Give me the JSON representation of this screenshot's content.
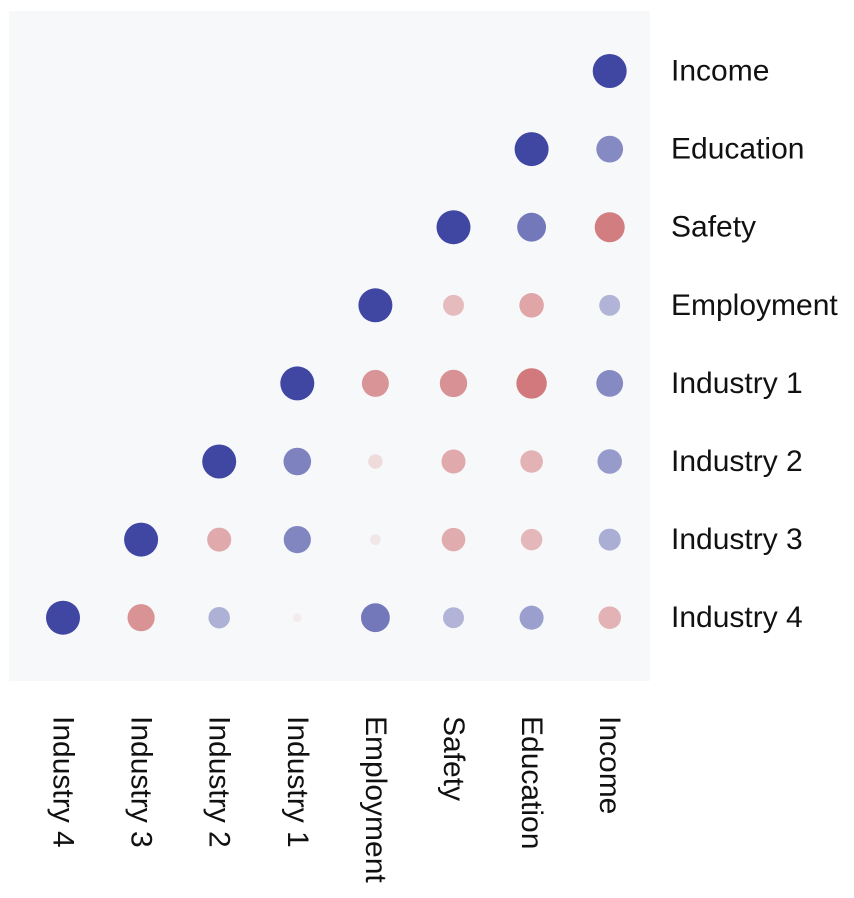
{
  "chart_data": {
    "type": "heatmap",
    "variables": [
      "Industry 4",
      "Industry 3",
      "Industry 2",
      "Industry 1",
      "Employment",
      "Safety",
      "Education",
      "Income"
    ],
    "x_ticks": [
      "Industry 4",
      "Industry 3",
      "Industry 2",
      "Industry 1",
      "Employment",
      "Safety",
      "Education",
      "Income"
    ],
    "y_ticks": [
      "Income",
      "Education",
      "Safety",
      "Employment",
      "Industry 1",
      "Industry 2",
      "Industry 3",
      "Industry 4"
    ],
    "value_range": [
      -1,
      1
    ],
    "colors": {
      "positive": "#3f47a3",
      "negative": "#c85a5e",
      "zero": "#f7f7f7",
      "panel_background": "#f7f8fa"
    },
    "cells": [
      {
        "row": "Income",
        "col": "Income",
        "value": 1.0
      },
      {
        "row": "Education",
        "col": "Education",
        "value": 1.0
      },
      {
        "row": "Education",
        "col": "Income",
        "value": 0.62
      },
      {
        "row": "Safety",
        "col": "Safety",
        "value": 1.0
      },
      {
        "row": "Safety",
        "col": "Education",
        "value": 0.72
      },
      {
        "row": "Safety",
        "col": "Income",
        "value": -0.78
      },
      {
        "row": "Employment",
        "col": "Employment",
        "value": 1.0
      },
      {
        "row": "Employment",
        "col": "Safety",
        "value": -0.38
      },
      {
        "row": "Employment",
        "col": "Education",
        "value": -0.52
      },
      {
        "row": "Employment",
        "col": "Income",
        "value": 0.38
      },
      {
        "row": "Industry 1",
        "col": "Industry 1",
        "value": 1.0
      },
      {
        "row": "Industry 1",
        "col": "Employment",
        "value": -0.63
      },
      {
        "row": "Industry 1",
        "col": "Safety",
        "value": -0.65
      },
      {
        "row": "Industry 1",
        "col": "Education",
        "value": -0.8
      },
      {
        "row": "Industry 1",
        "col": "Income",
        "value": 0.62
      },
      {
        "row": "Industry 2",
        "col": "Industry 2",
        "value": 1.0
      },
      {
        "row": "Industry 2",
        "col": "Industry 1",
        "value": 0.66
      },
      {
        "row": "Industry 2",
        "col": "Employment",
        "value": -0.18
      },
      {
        "row": "Industry 2",
        "col": "Safety",
        "value": -0.5
      },
      {
        "row": "Industry 2",
        "col": "Education",
        "value": -0.44
      },
      {
        "row": "Industry 2",
        "col": "Income",
        "value": 0.52
      },
      {
        "row": "Industry 3",
        "col": "Industry 3",
        "value": 1.0
      },
      {
        "row": "Industry 3",
        "col": "Industry 2",
        "value": -0.5
      },
      {
        "row": "Industry 3",
        "col": "Industry 1",
        "value": 0.64
      },
      {
        "row": "Industry 3",
        "col": "Employment",
        "value": -0.1
      },
      {
        "row": "Industry 3",
        "col": "Safety",
        "value": -0.48
      },
      {
        "row": "Industry 3",
        "col": "Education",
        "value": -0.4
      },
      {
        "row": "Industry 3",
        "col": "Income",
        "value": 0.42
      },
      {
        "row": "Industry 4",
        "col": "Industry 4",
        "value": 1.0
      },
      {
        "row": "Industry 4",
        "col": "Industry 3",
        "value": -0.64
      },
      {
        "row": "Industry 4",
        "col": "Industry 2",
        "value": 0.4
      },
      {
        "row": "Industry 4",
        "col": "Industry 1",
        "value": -0.07
      },
      {
        "row": "Industry 4",
        "col": "Employment",
        "value": 0.72
      },
      {
        "row": "Industry 4",
        "col": "Safety",
        "value": 0.38
      },
      {
        "row": "Industry 4",
        "col": "Education",
        "value": 0.5
      },
      {
        "row": "Industry 4",
        "col": "Income",
        "value": -0.44
      }
    ]
  }
}
